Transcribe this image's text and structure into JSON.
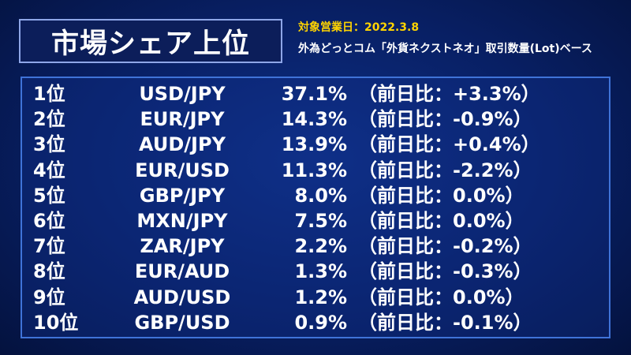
{
  "header": {
    "title": "市場シェア上位",
    "date_line": "対象営業日：2022.3.8",
    "description": "外為どっとコム「外貨ネクストネオ」取引数量(Lot)ベース"
  },
  "colors": {
    "background": "#081f63",
    "title_box_border": "#8ea6e8",
    "panel_border": "#3f73d8",
    "date_text": "#ffd400",
    "body_text": "#ffffff"
  },
  "rankings": [
    {
      "rank": "1位",
      "pair": "USD/JPY",
      "share": "37.1%",
      "change": "（前日比：+3.3%）"
    },
    {
      "rank": "2位",
      "pair": "EUR/JPY",
      "share": "14.3%",
      "change": "（前日比：-0.9%）"
    },
    {
      "rank": "3位",
      "pair": "AUD/JPY",
      "share": "13.9%",
      "change": "（前日比：+0.4%）"
    },
    {
      "rank": "4位",
      "pair": "EUR/USD",
      "share": "11.3%",
      "change": "（前日比：-2.2%）"
    },
    {
      "rank": "5位",
      "pair": "GBP/JPY",
      "share": "8.0%",
      "change": "（前日比：0.0%）"
    },
    {
      "rank": "6位",
      "pair": "MXN/JPY",
      "share": "7.5%",
      "change": "（前日比：0.0%）"
    },
    {
      "rank": "7位",
      "pair": "ZAR/JPY",
      "share": "2.2%",
      "change": "（前日比：-0.2%）"
    },
    {
      "rank": "8位",
      "pair": "EUR/AUD",
      "share": "1.3%",
      "change": "（前日比：-0.3%）"
    },
    {
      "rank": "9位",
      "pair": "AUD/USD",
      "share": "1.2%",
      "change": "（前日比：0.0%）"
    },
    {
      "rank": "10位",
      "pair": "GBP/USD",
      "share": "0.9%",
      "change": "（前日比：-0.1%）"
    }
  ]
}
